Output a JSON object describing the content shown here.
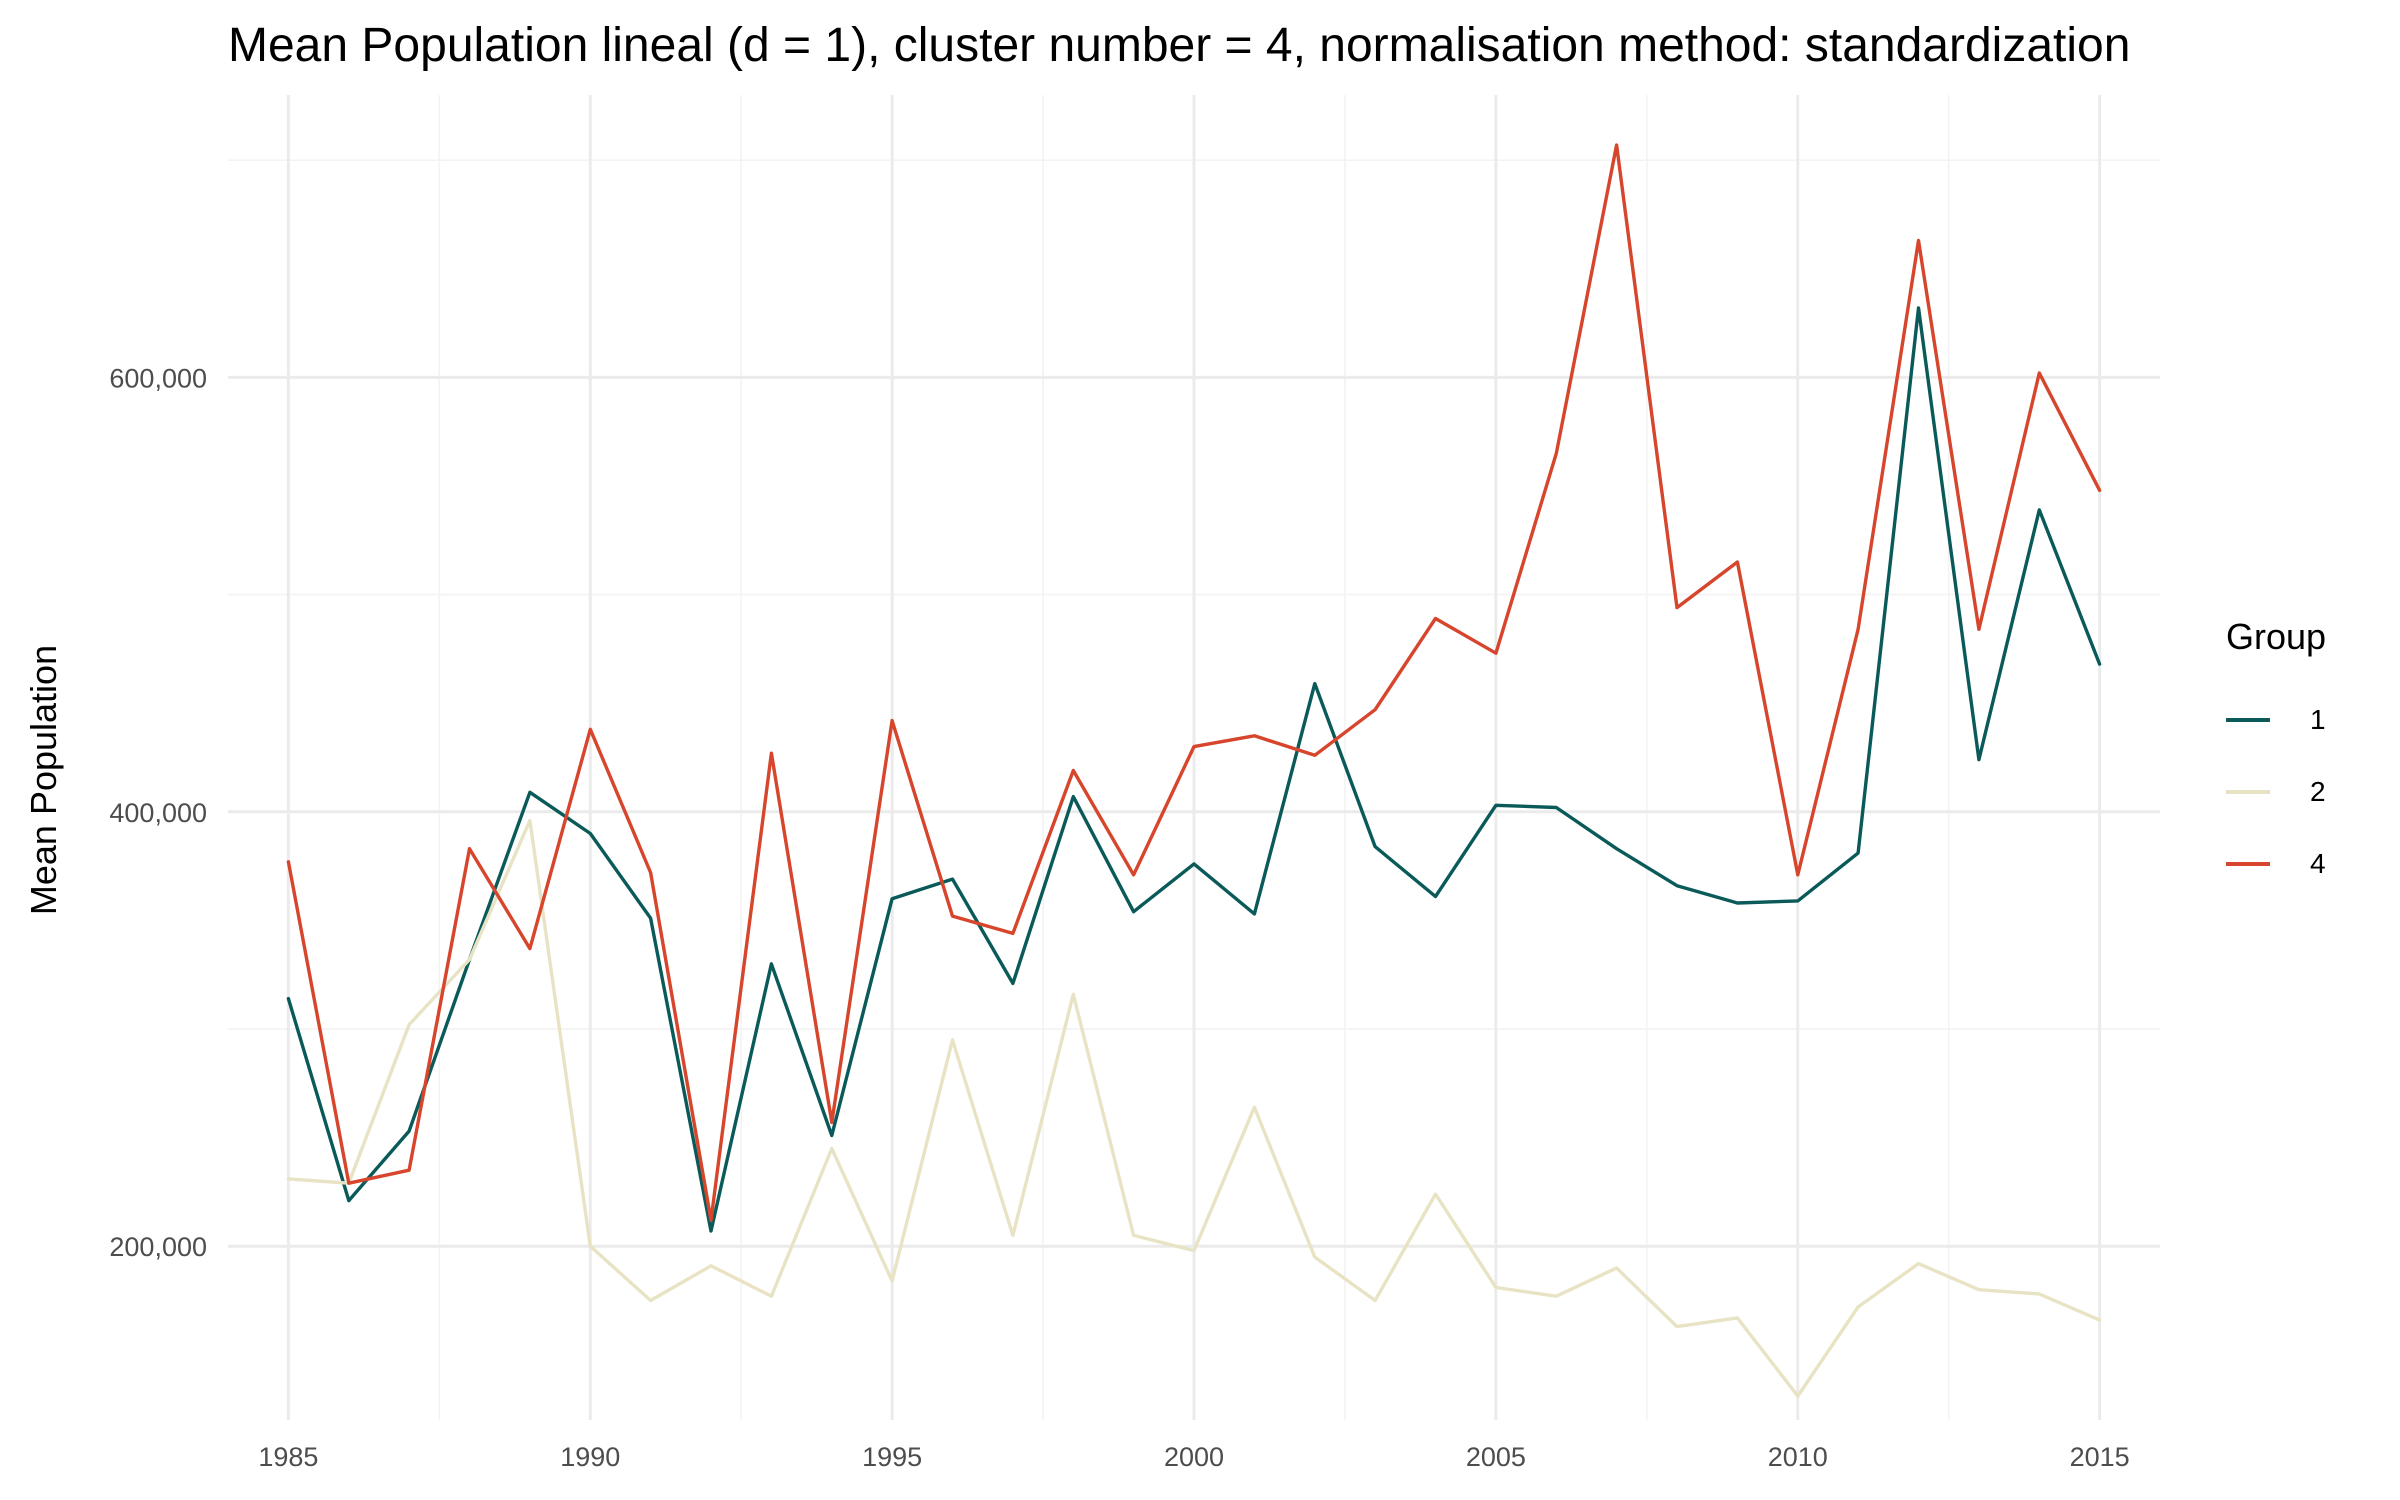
{
  "chart_data": {
    "type": "line",
    "title": "Mean Population lineal (d = 1), cluster number = 4, normalisation method: standardization",
    "xlabel": "",
    "ylabel": "Mean Population",
    "x": [
      1985,
      1986,
      1987,
      1988,
      1989,
      1990,
      1991,
      1992,
      1993,
      1994,
      1995,
      1996,
      1997,
      1998,
      1999,
      2000,
      2001,
      2002,
      2003,
      2004,
      2005,
      2006,
      2007,
      2008,
      2009,
      2010,
      2011,
      2012,
      2013,
      2014,
      2015
    ],
    "xlim": [
      1984,
      2016
    ],
    "ylim": [
      120000,
      730000
    ],
    "x_ticks": [
      1985,
      1990,
      1995,
      2000,
      2005,
      2010,
      2015
    ],
    "x_tick_labels": [
      "1985",
      "1990",
      "1995",
      "2000",
      "2005",
      "2010",
      "2015"
    ],
    "y_ticks": [
      200000,
      400000,
      600000
    ],
    "y_tick_labels": [
      "200,000",
      "400,000",
      "600,000"
    ],
    "grid": true,
    "legend": {
      "title": "Group",
      "position": "right"
    },
    "series": [
      {
        "name": "1",
        "color": "#0b5a5a",
        "values": [
          314000,
          221000,
          253000,
          332000,
          409000,
          390000,
          351000,
          207000,
          330000,
          251000,
          360000,
          369000,
          321000,
          407000,
          354000,
          376000,
          353000,
          459000,
          384000,
          361000,
          403000,
          402000,
          383000,
          366000,
          358000,
          359000,
          381000,
          632000,
          424000,
          539000,
          468000
        ]
      },
      {
        "name": "2",
        "color": "#e8e3c4",
        "values": [
          231000,
          229000,
          302000,
          332000,
          396000,
          200000,
          175000,
          191000,
          177000,
          245000,
          184000,
          295000,
          205000,
          316000,
          205000,
          198000,
          264000,
          195000,
          175000,
          224000,
          181000,
          177000,
          190000,
          163000,
          167000,
          131000,
          172000,
          192000,
          180000,
          178000,
          166000
        ]
      },
      {
        "name": "4",
        "color": "#d6452c",
        "values": [
          377000,
          229000,
          235000,
          383000,
          337000,
          438000,
          372000,
          212000,
          427000,
          257000,
          442000,
          352000,
          344000,
          419000,
          371000,
          430000,
          435000,
          426000,
          447000,
          489000,
          473000,
          565000,
          707000,
          494000,
          515000,
          371000,
          484000,
          663000,
          484000,
          602000,
          548000
        ]
      }
    ]
  }
}
